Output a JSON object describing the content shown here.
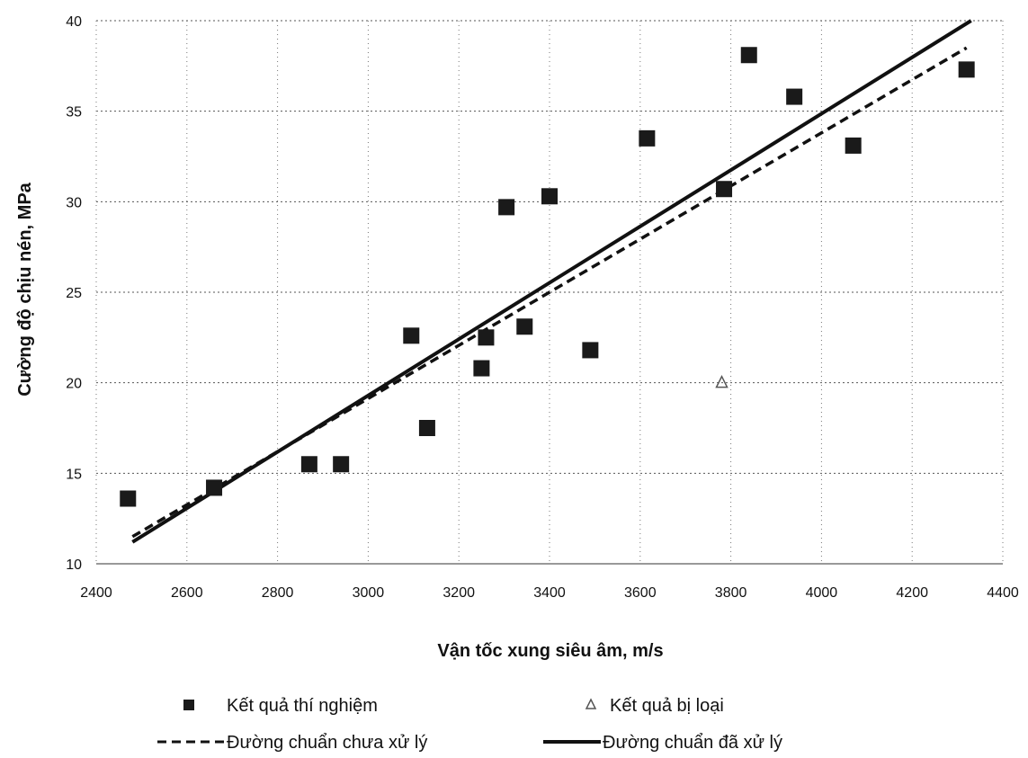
{
  "chart_data": {
    "type": "scatter",
    "title": "",
    "xlabel": "Vận tốc xung siêu âm, m/s",
    "ylabel": "Cường độ chịu nén, MPa",
    "xlim": [
      2400,
      4400
    ],
    "ylim": [
      10,
      40
    ],
    "xticks": [
      "2400",
      "2600",
      "2800",
      "3000",
      "3200",
      "3400",
      "3600",
      "3800",
      "4000",
      "4200",
      "4400"
    ],
    "yticks": [
      "10",
      "15",
      "20",
      "25",
      "30",
      "35",
      "40"
    ],
    "grid": true,
    "legend_position": "bottom",
    "series": [
      {
        "name": "Kết quả thí nghiệm",
        "kind": "scatter",
        "marker": "square",
        "color": "#1a1a1a",
        "points": [
          [
            2470,
            13.6
          ],
          [
            2660,
            14.2
          ],
          [
            2870,
            15.5
          ],
          [
            2940,
            15.5
          ],
          [
            3095,
            22.6
          ],
          [
            3130,
            17.5
          ],
          [
            3250,
            20.8
          ],
          [
            3260,
            22.5
          ],
          [
            3305,
            29.7
          ],
          [
            3345,
            23.1
          ],
          [
            3400,
            30.3
          ],
          [
            3490,
            21.8
          ],
          [
            3615,
            33.5
          ],
          [
            3785,
            30.7
          ],
          [
            3840,
            38.1
          ],
          [
            3940,
            35.8
          ],
          [
            4070,
            33.1
          ],
          [
            4320,
            37.3
          ]
        ]
      },
      {
        "name": "Kết quả bị loại",
        "kind": "scatter",
        "marker": "triangle",
        "color": "#555555",
        "points": [
          [
            3780,
            20.0
          ]
        ]
      },
      {
        "name": "Đường chuẩn chưa xử lý",
        "kind": "line",
        "dash": "dashed",
        "color": "#111111",
        "points": [
          [
            2480,
            11.5
          ],
          [
            4320,
            38.5
          ]
        ]
      },
      {
        "name": "Đường chuẩn đã xử lý",
        "kind": "line",
        "dash": "solid",
        "color": "#111111",
        "points": [
          [
            2480,
            11.2
          ],
          [
            4330,
            40.0
          ]
        ]
      }
    ]
  }
}
